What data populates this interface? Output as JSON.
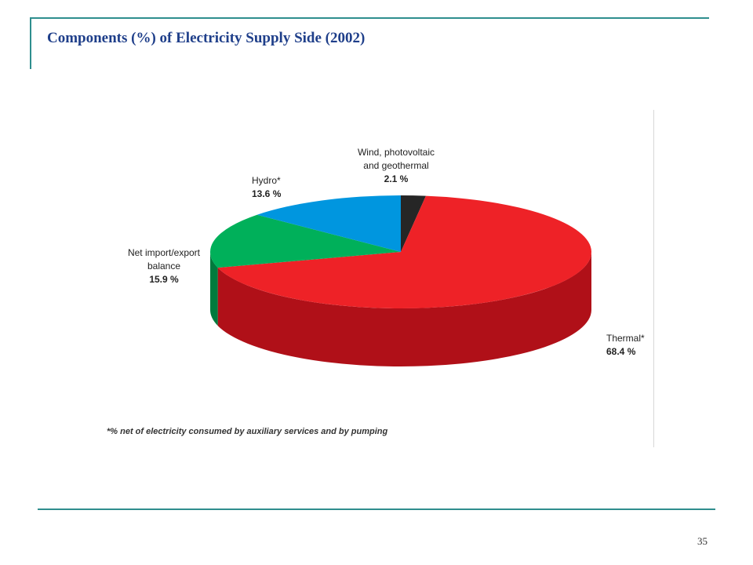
{
  "slide": {
    "title": "Components (%) of Electricity Supply Side (2002)",
    "page_number": "35"
  },
  "chart_data": {
    "type": "pie",
    "style": "3d",
    "slices": [
      {
        "label": "Wind, photovoltaic and geothermal",
        "label_lines": [
          "Wind, photovoltaic",
          "and geothermal"
        ],
        "value": 2.1,
        "value_text": "2.1 %",
        "color": "#262626",
        "side_color": "#111111"
      },
      {
        "label": "Thermal*",
        "label_lines": [
          "Thermal*"
        ],
        "value": 68.4,
        "value_text": "68.4 %",
        "color": "#ee2227",
        "side_color": "#b01018"
      },
      {
        "label": "Net import/export balance",
        "label_lines": [
          "Net import/export",
          "balance"
        ],
        "value": 15.9,
        "value_text": "15.9 %",
        "color": "#00b05a",
        "side_color": "#007a3d"
      },
      {
        "label": "Hydro*",
        "label_lines": [
          "Hydro*"
        ],
        "value": 13.6,
        "value_text": "13.6 %",
        "color": "#0096df",
        "side_color": "#006aa0"
      }
    ],
    "footnote": "*% net of electricity consumed by auxiliary services and by pumping"
  }
}
